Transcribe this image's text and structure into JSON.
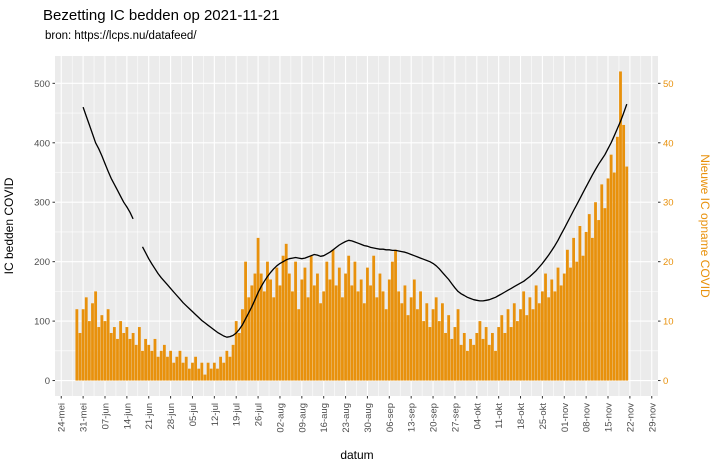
{
  "page": {
    "title": "Bezetting IC bedden op 2021-11-21",
    "subtitle": "bron: https://lcps.nu/datafeed/"
  },
  "colors": {
    "bar": "#E8910C",
    "line": "#000000",
    "panel_bg": "#EBEBEB",
    "grid": "#FFFFFF",
    "tick_text": "#4D4D4D",
    "tick_mark": "#333333",
    "right_axis_text": "#E8910C"
  },
  "chart_data": {
    "type": "bar",
    "combo": "daily bars on right axis + occupancy line on left axis",
    "title": "Bezetting IC bedden op 2021-11-21",
    "subtitle": "bron: https://lcps.nu/datafeed/",
    "xlabel": "datum",
    "ylabel_left": "IC bedden COVID",
    "ylabel_right": "Nieuwe IC opname COVID",
    "y_ticks_left": [
      0,
      100,
      200,
      300,
      400,
      500
    ],
    "y_ticks_right": [
      0,
      10,
      20,
      30,
      40,
      50
    ],
    "ylim_left": [
      -26,
      546
    ],
    "ylim_right": [
      -2.6,
      54.6
    ],
    "grid": true,
    "legend": "none",
    "x": {
      "start": "2021-05-29",
      "step_days": 1,
      "count": 177
    },
    "x_ticks": [
      {
        "label": "24-mei",
        "date": "2021-05-24"
      },
      {
        "label": "31-mei",
        "date": "2021-05-31"
      },
      {
        "label": "07-jun",
        "date": "2021-06-07"
      },
      {
        "label": "14-jun",
        "date": "2021-06-14"
      },
      {
        "label": "21-jun",
        "date": "2021-06-21"
      },
      {
        "label": "28-jun",
        "date": "2021-06-28"
      },
      {
        "label": "05-jul",
        "date": "2021-07-05"
      },
      {
        "label": "12-jul",
        "date": "2021-07-12"
      },
      {
        "label": "19-jul",
        "date": "2021-07-19"
      },
      {
        "label": "26-jul",
        "date": "2021-07-26"
      },
      {
        "label": "02-aug",
        "date": "2021-08-02"
      },
      {
        "label": "09-aug",
        "date": "2021-08-09"
      },
      {
        "label": "16-aug",
        "date": "2021-08-16"
      },
      {
        "label": "23-aug",
        "date": "2021-08-23"
      },
      {
        "label": "30-aug",
        "date": "2021-08-30"
      },
      {
        "label": "06-sep",
        "date": "2021-09-06"
      },
      {
        "label": "13-sep",
        "date": "2021-09-13"
      },
      {
        "label": "20-sep",
        "date": "2021-09-20"
      },
      {
        "label": "27-sep",
        "date": "2021-09-27"
      },
      {
        "label": "04-okt",
        "date": "2021-10-04"
      },
      {
        "label": "11-okt",
        "date": "2021-10-11"
      },
      {
        "label": "18-okt",
        "date": "2021-10-18"
      },
      {
        "label": "25-okt",
        "date": "2021-10-25"
      },
      {
        "label": "01-nov",
        "date": "2021-11-01"
      },
      {
        "label": "08-nov",
        "date": "2021-11-08"
      },
      {
        "label": "15-nov",
        "date": "2021-11-15"
      },
      {
        "label": "22-nov",
        "date": "2021-11-22"
      },
      {
        "label": "29-nov",
        "date": "2021-11-29"
      }
    ],
    "series": [
      {
        "name": "Nieuwe IC opname COVID",
        "kind": "bar",
        "axis": "right",
        "values": [
          12,
          8,
          12,
          14,
          10,
          13,
          15,
          9,
          11,
          10,
          12,
          8,
          9,
          7,
          10,
          8,
          9,
          7,
          8,
          6,
          9,
          5,
          7,
          6,
          5,
          7,
          4,
          5,
          6,
          4,
          5,
          3,
          4,
          5,
          3,
          4,
          2,
          3,
          4,
          2,
          3,
          1,
          3,
          2,
          3,
          2,
          4,
          3,
          5,
          4,
          6,
          10,
          8,
          12,
          20,
          14,
          16,
          18,
          24,
          18,
          15,
          20,
          17,
          14,
          19,
          16,
          21,
          23,
          18,
          15,
          20,
          12,
          17,
          19,
          14,
          21,
          16,
          18,
          13,
          15,
          20,
          17,
          22,
          16,
          19,
          14,
          18,
          21,
          16,
          20,
          15,
          17,
          13,
          19,
          16,
          21,
          14,
          18,
          15,
          12,
          17,
          20,
          22,
          15,
          13,
          16,
          11,
          14,
          17,
          12,
          15,
          10,
          13,
          9,
          12,
          14,
          10,
          13,
          8,
          11,
          7,
          9,
          12,
          6,
          8,
          5,
          7,
          6,
          8,
          10,
          7,
          9,
          6,
          8,
          5,
          9,
          11,
          8,
          12,
          9,
          13,
          10,
          12,
          15,
          11,
          14,
          12,
          16,
          13,
          15,
          18,
          14,
          17,
          15,
          19,
          16,
          18,
          22,
          19,
          24,
          20,
          26,
          21,
          25,
          28,
          24,
          30,
          27,
          33,
          29,
          34,
          38,
          35,
          41,
          52,
          43,
          36
        ]
      },
      {
        "name": "IC bedden COVID",
        "kind": "line",
        "axis": "left",
        "values": [
          null,
          null,
          460,
          445,
          430,
          415,
          400,
          390,
          378,
          365,
          352,
          340,
          330,
          320,
          310,
          300,
          292,
          283,
          272,
          null,
          null,
          225,
          215,
          205,
          196,
          188,
          180,
          173,
          167,
          161,
          155,
          149,
          143,
          137,
          131,
          126,
          121,
          116,
          111,
          106,
          101,
          97,
          93,
          89,
          85,
          81,
          78,
          75,
          73,
          74,
          76,
          80,
          86,
          94,
          104,
          114,
          124,
          136,
          148,
          158,
          167,
          175,
          182,
          188,
          193,
          197,
          200,
          203,
          205,
          206,
          207,
          206,
          205,
          206,
          208,
          210,
          212,
          211,
          209,
          210,
          213,
          216,
          220,
          224,
          228,
          231,
          234,
          236,
          235,
          233,
          231,
          229,
          227,
          226,
          224,
          223,
          222,
          221,
          221,
          220,
          220,
          219,
          219,
          218,
          217,
          216,
          214,
          212,
          210,
          208,
          206,
          204,
          202,
          200,
          197,
          193,
          188,
          182,
          176,
          170,
          163,
          156,
          150,
          146,
          143,
          140,
          138,
          136,
          135,
          134,
          134,
          135,
          136,
          138,
          140,
          143,
          146,
          149,
          152,
          155,
          158,
          161,
          164,
          167,
          171,
          175,
          180,
          185,
          191,
          197,
          204,
          211,
          219,
          227,
          236,
          246,
          256,
          266,
          276,
          286,
          296,
          306,
          316,
          326,
          336,
          346,
          355,
          364,
          372,
          380,
          390,
          400,
          412,
          424,
          436,
          450,
          465
        ]
      }
    ]
  }
}
